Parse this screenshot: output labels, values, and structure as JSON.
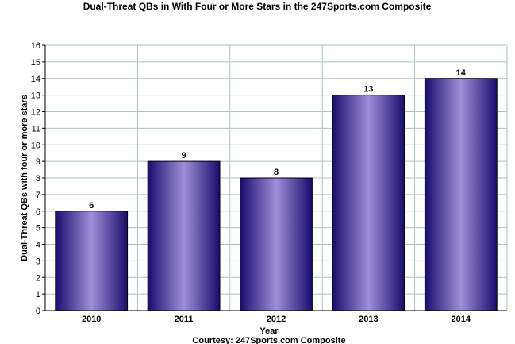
{
  "chart_data": {
    "type": "bar",
    "title": "Dual-Threat QBs in With Four or More Stars in the 247Sports.com Composite",
    "xlabel": "Year",
    "ylabel": "Dual-Threat QBs with four or more stars",
    "credit": "Courtesy: 247Sports.com Composite",
    "categories": [
      "2010",
      "2011",
      "2012",
      "2013",
      "2014"
    ],
    "values": [
      6,
      9,
      8,
      13,
      14
    ],
    "data_labels": [
      "6",
      "9",
      "8",
      "13",
      "14"
    ],
    "ylim": [
      0,
      16
    ],
    "yticks": [
      "0",
      "1",
      "2",
      "3",
      "4",
      "5",
      "6",
      "7",
      "8",
      "9",
      "10",
      "11",
      "12",
      "13",
      "14",
      "15",
      "16"
    ],
    "grid": true,
    "legend": "none",
    "colors": {
      "bar_dark": "#1a0c6e",
      "bar_light": "#9f8fd9",
      "grid": "#a9c5b9",
      "axis": "#000000"
    }
  }
}
